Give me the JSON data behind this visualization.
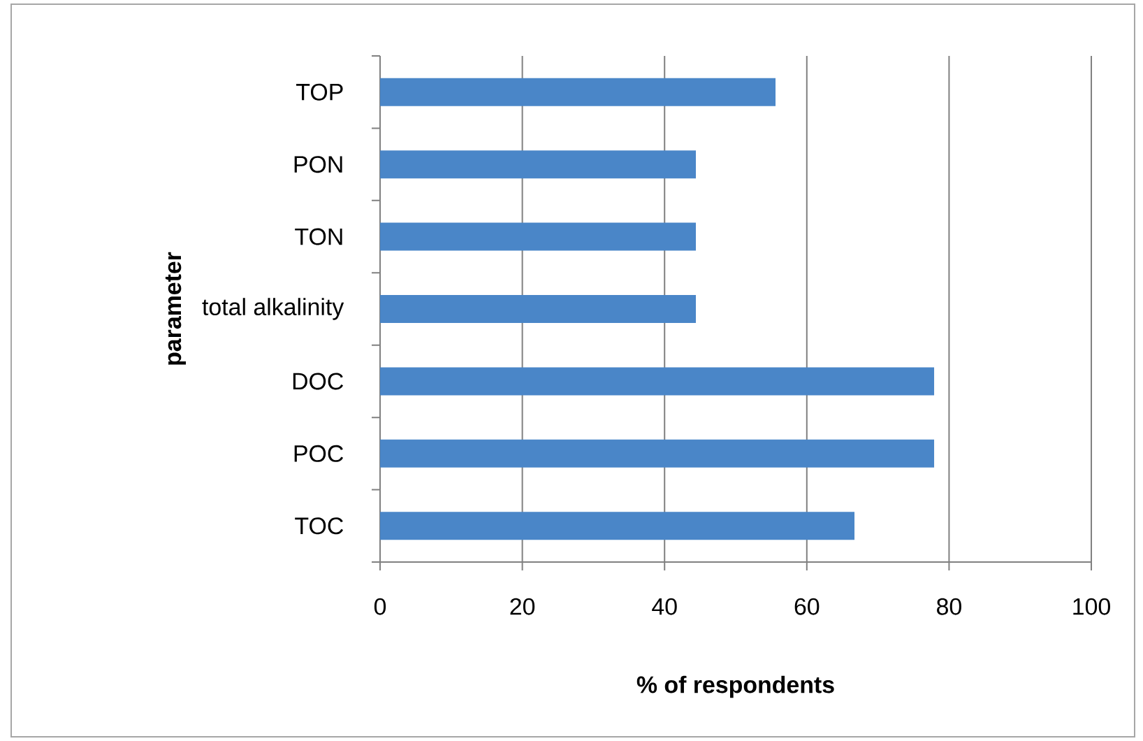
{
  "chart_data": {
    "type": "bar",
    "orientation": "horizontal",
    "xlabel": "% of respondents",
    "ylabel": "parameter",
    "categories": [
      "TOP",
      "PON",
      "TON",
      "total alkalinity",
      "DOC",
      "POC",
      "TOC"
    ],
    "values": [
      55.6,
      44.4,
      44.4,
      44.4,
      77.9,
      77.9,
      66.7
    ],
    "color": "#4a86c8",
    "xlim": [
      0,
      100
    ],
    "xticks": [
      0,
      20,
      40,
      60,
      80,
      100
    ],
    "grid": "x"
  }
}
